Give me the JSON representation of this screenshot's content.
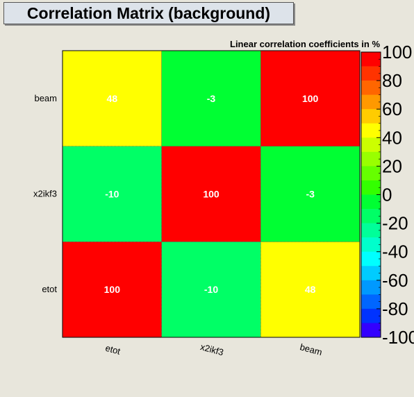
{
  "title": "Correlation Matrix (background)",
  "chart_data": {
    "type": "heatmap",
    "title": "Correlation Matrix (background)",
    "subtitle": "Linear correlation coefficients in %",
    "x_categories": [
      "etot",
      "x2ikf3",
      "beam"
    ],
    "y_categories": [
      "etot",
      "x2ikf3",
      "beam"
    ],
    "values": [
      [
        100,
        -10,
        48
      ],
      [
        -10,
        100,
        -3
      ],
      [
        48,
        -3,
        100
      ]
    ],
    "value_labels": [
      [
        "100",
        "-10",
        "48"
      ],
      [
        "-10",
        "100",
        "-3"
      ],
      [
        "48",
        "-3",
        "100"
      ]
    ],
    "zlim": [
      -100,
      100
    ],
    "colorbar_ticks": [
      "100",
      "80",
      "60",
      "40",
      "20",
      "0",
      "-20",
      "-40",
      "-60",
      "-80",
      "-100"
    ],
    "colorbar_colors": [
      "#ff0000",
      "#ff3300",
      "#ff6600",
      "#ff9900",
      "#ffcc00",
      "#ffff00",
      "#ccff00",
      "#99ff00",
      "#66ff00",
      "#33ff00",
      "#00ff33",
      "#00ff66",
      "#00ff99",
      "#00ffcc",
      "#00ffff",
      "#00ccff",
      "#0099ff",
      "#0066ff",
      "#0033ff",
      "#3300ff"
    ],
    "cell_text_color": "#ffffff"
  }
}
